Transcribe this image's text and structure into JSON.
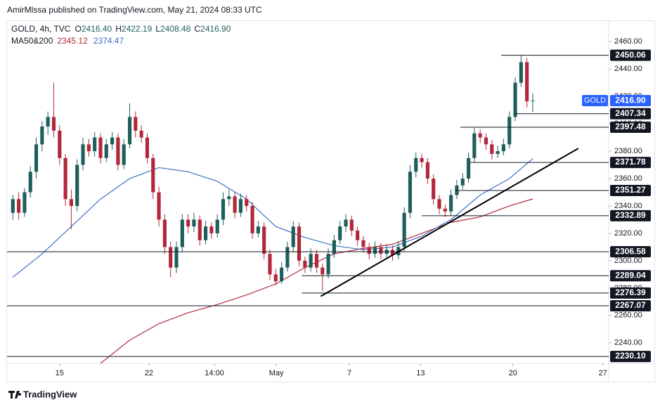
{
  "publisher": "AmirMlssa published on TradingView.com, May 21, 2024 08:33 UTC",
  "footer": "TradingView",
  "chart_data": {
    "type": "candlestick",
    "symbol": "GOLD, 4h, TVC",
    "ohlc_legend": [
      {
        "key": "O",
        "label": "2416.40"
      },
      {
        "key": "H",
        "label": "2422.19"
      },
      {
        "key": "L",
        "label": "2408.48"
      },
      {
        "key": "C",
        "label": "2416.90"
      }
    ],
    "price_tag": {
      "name": "GOLD",
      "label": "2416.90"
    },
    "up_color": "#1f5f5b",
    "down_color": "#b2283a",
    "xlim": [
      -1,
      102
    ],
    "xticks": [
      {
        "value": 8,
        "label": "15"
      },
      {
        "value": 23.3,
        "label": "22"
      },
      {
        "value": 34.5,
        "label": "14:00"
      },
      {
        "value": 45.1,
        "label": "May"
      },
      {
        "value": 57.6,
        "label": "7"
      },
      {
        "value": 69.8,
        "label": "13"
      },
      {
        "value": 85.6,
        "label": "20"
      },
      {
        "value": 101,
        "label": "27"
      }
    ],
    "ylim": [
      2225,
      2475
    ],
    "yticks": [
      {
        "value": 2240,
        "label": "2240.00"
      },
      {
        "value": 2260,
        "label": "2260.00"
      },
      {
        "value": 2280,
        "label": "2280.00"
      },
      {
        "value": 2300,
        "label": "2300.00"
      },
      {
        "value": 2320,
        "label": "2320.00"
      },
      {
        "value": 2340,
        "label": "2340.00"
      },
      {
        "value": 2360,
        "label": "2360.00"
      },
      {
        "value": 2380,
        "label": "2380.00"
      },
      {
        "value": 2400,
        "label": "2400.00"
      },
      {
        "value": 2420,
        "label": "2420.00"
      },
      {
        "value": 2440,
        "label": "2440.00"
      },
      {
        "value": 2460,
        "label": "2460.00"
      }
    ],
    "ohlc": [
      [
        2335,
        2348,
        2330,
        2345
      ],
      [
        2345,
        2350,
        2330,
        2335
      ],
      [
        2335,
        2353,
        2332,
        2350
      ],
      [
        2350,
        2369,
        2346,
        2365
      ],
      [
        2365,
        2390,
        2360,
        2385
      ],
      [
        2385,
        2402,
        2380,
        2398
      ],
      [
        2398,
        2409,
        2392,
        2405
      ],
      [
        2405,
        2430,
        2390,
        2395
      ],
      [
        2395,
        2399,
        2370,
        2375
      ],
      [
        2375,
        2378,
        2340,
        2345
      ],
      [
        2345,
        2352,
        2323,
        2340
      ],
      [
        2340,
        2374,
        2336,
        2370
      ],
      [
        2370,
        2390,
        2366,
        2385
      ],
      [
        2385,
        2389,
        2376,
        2380
      ],
      [
        2380,
        2394,
        2376,
        2390
      ],
      [
        2390,
        2393,
        2371,
        2375
      ],
      [
        2375,
        2389,
        2372,
        2385
      ],
      [
        2385,
        2394,
        2381,
        2390
      ],
      [
        2390,
        2393,
        2366,
        2370
      ],
      [
        2370,
        2389,
        2367,
        2385
      ],
      [
        2385,
        2415,
        2382,
        2405
      ],
      [
        2405,
        2409,
        2390,
        2395
      ],
      [
        2395,
        2399,
        2386,
        2390
      ],
      [
        2390,
        2393,
        2371,
        2375
      ],
      [
        2375,
        2378,
        2345,
        2350
      ],
      [
        2350,
        2354,
        2325,
        2330
      ],
      [
        2330,
        2334,
        2305,
        2310
      ],
      [
        2310,
        2314,
        2288,
        2295
      ],
      [
        2295,
        2314,
        2291,
        2310
      ],
      [
        2310,
        2334,
        2306,
        2330
      ],
      [
        2330,
        2334,
        2320,
        2325
      ],
      [
        2325,
        2335,
        2321,
        2330
      ],
      [
        2330,
        2333,
        2311,
        2315
      ],
      [
        2315,
        2329,
        2312,
        2325
      ],
      [
        2325,
        2328,
        2316,
        2320
      ],
      [
        2320,
        2334,
        2317,
        2330
      ],
      [
        2330,
        2350,
        2326,
        2345
      ],
      [
        2345,
        2352,
        2340,
        2347
      ],
      [
        2347,
        2350,
        2331,
        2335
      ],
      [
        2335,
        2349,
        2332,
        2345
      ],
      [
        2345,
        2348,
        2336,
        2340
      ],
      [
        2340,
        2343,
        2316,
        2320
      ],
      [
        2320,
        2329,
        2317,
        2325
      ],
      [
        2325,
        2328,
        2301,
        2305
      ],
      [
        2305,
        2308,
        2286,
        2290
      ],
      [
        2290,
        2294,
        2282,
        2285
      ],
      [
        2285,
        2299,
        2283,
        2295
      ],
      [
        2295,
        2314,
        2292,
        2310
      ],
      [
        2310,
        2329,
        2306,
        2325
      ],
      [
        2325,
        2328,
        2296,
        2300
      ],
      [
        2300,
        2303,
        2291,
        2295
      ],
      [
        2295,
        2309,
        2292,
        2305
      ],
      [
        2305,
        2308,
        2291,
        2295
      ],
      [
        2295,
        2298,
        2278,
        2290
      ],
      [
        2290,
        2309,
        2287,
        2305
      ],
      [
        2305,
        2319,
        2302,
        2315
      ],
      [
        2315,
        2329,
        2312,
        2325
      ],
      [
        2325,
        2334,
        2321,
        2330
      ],
      [
        2330,
        2333,
        2318,
        2322
      ],
      [
        2322,
        2325,
        2311,
        2315
      ],
      [
        2315,
        2318,
        2306,
        2310
      ],
      [
        2310,
        2313,
        2301,
        2305
      ],
      [
        2305,
        2314,
        2302,
        2310
      ],
      [
        2310,
        2313,
        2301,
        2305
      ],
      [
        2305,
        2312,
        2302,
        2308
      ],
      [
        2308,
        2311,
        2300,
        2304
      ],
      [
        2304,
        2314,
        2301,
        2310
      ],
      [
        2310,
        2339,
        2307,
        2335
      ],
      [
        2335,
        2370,
        2331,
        2365
      ],
      [
        2365,
        2379,
        2361,
        2375
      ],
      [
        2375,
        2378,
        2368,
        2372
      ],
      [
        2372,
        2375,
        2356,
        2360
      ],
      [
        2360,
        2363,
        2341,
        2345
      ],
      [
        2345,
        2348,
        2334,
        2338
      ],
      [
        2338,
        2341,
        2332,
        2336
      ],
      [
        2336,
        2352,
        2333,
        2348
      ],
      [
        2348,
        2359,
        2345,
        2355
      ],
      [
        2355,
        2364,
        2352,
        2360
      ],
      [
        2360,
        2379,
        2357,
        2375
      ],
      [
        2375,
        2397,
        2372,
        2393
      ],
      [
        2393,
        2396,
        2386,
        2390
      ],
      [
        2390,
        2393,
        2381,
        2385
      ],
      [
        2385,
        2388,
        2374,
        2378
      ],
      [
        2378,
        2384,
        2375,
        2380
      ],
      [
        2380,
        2389,
        2377,
        2385
      ],
      [
        2385,
        2409,
        2382,
        2405
      ],
      [
        2405,
        2434,
        2402,
        2430
      ],
      [
        2430,
        2450.06,
        2427,
        2445
      ],
      [
        2445,
        2448,
        2412,
        2416.4
      ],
      [
        2416.4,
        2422.19,
        2408.48,
        2416.9
      ]
    ],
    "indicator": {
      "label": "MA50&200",
      "series": [
        {
          "color": "#b2283a",
          "value_label": "2345.12",
          "x": [
            15,
            20,
            25,
            30,
            35,
            40,
            45,
            50,
            55,
            60,
            65,
            70,
            75,
            80,
            85,
            89
          ],
          "values": [
            2225,
            2242,
            2254,
            2262,
            2268,
            2275,
            2283,
            2295,
            2305,
            2309,
            2312,
            2320,
            2328,
            2332,
            2340,
            2345.12
          ]
        },
        {
          "color": "#3d6fc4",
          "value_label": "2374.47",
          "x": [
            0,
            5,
            10,
            15,
            20,
            25,
            30,
            35,
            40,
            45,
            50,
            55,
            60,
            65,
            70,
            75,
            80,
            85,
            89
          ],
          "values": [
            2288,
            2305,
            2325,
            2345,
            2360,
            2368,
            2365,
            2358,
            2345,
            2325,
            2317,
            2311,
            2308,
            2310,
            2318,
            2330,
            2348,
            2360,
            2374.47
          ]
        }
      ]
    },
    "levels": [
      {
        "value": 2450.06,
        "label": "2450.06",
        "x_start": 83.6
      },
      {
        "value": 2407.34,
        "label": "2407.34",
        "x_start": 86
      },
      {
        "value": 2397.48,
        "label": "2397.48",
        "x_start": 76.6
      },
      {
        "value": 2371.78,
        "label": "2371.78",
        "x_start": 78.2
      },
      {
        "value": 2351.27,
        "label": "2351.27",
        "x_start": 75.7
      },
      {
        "value": 2332.89,
        "label": "2332.89",
        "x_start": 70
      },
      {
        "value": 2306.58,
        "label": "2306.58",
        "x_start": -1
      },
      {
        "value": 2289.04,
        "label": "2289.04",
        "x_start": 49.5
      },
      {
        "value": 2276.39,
        "label": "2276.39",
        "x_start": 49.5
      },
      {
        "value": 2267.07,
        "label": "2267.07",
        "x_start": -1
      },
      {
        "value": 2230.1,
        "label": "2230.10",
        "x_start": -1
      }
    ],
    "trendline": {
      "x": [
        52.7,
        96.8
      ],
      "values": [
        2274,
        2382
      ]
    }
  }
}
